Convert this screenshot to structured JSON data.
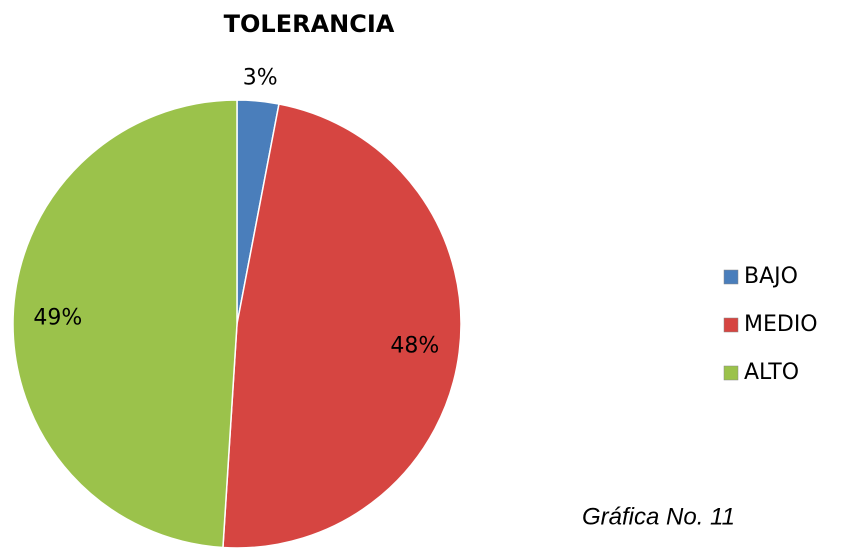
{
  "chart_data": {
    "type": "pie",
    "title": "TOLERANCIA",
    "categories": [
      "BAJO",
      "MEDIO",
      "ALTO"
    ],
    "values": [
      3,
      48,
      49
    ],
    "value_labels": [
      "3%",
      "48%",
      "49%"
    ],
    "colors": [
      "#4a7ebb",
      "#d64541",
      "#9bc24b"
    ],
    "legend": "right",
    "annotation": "Gráfica No. 11"
  }
}
